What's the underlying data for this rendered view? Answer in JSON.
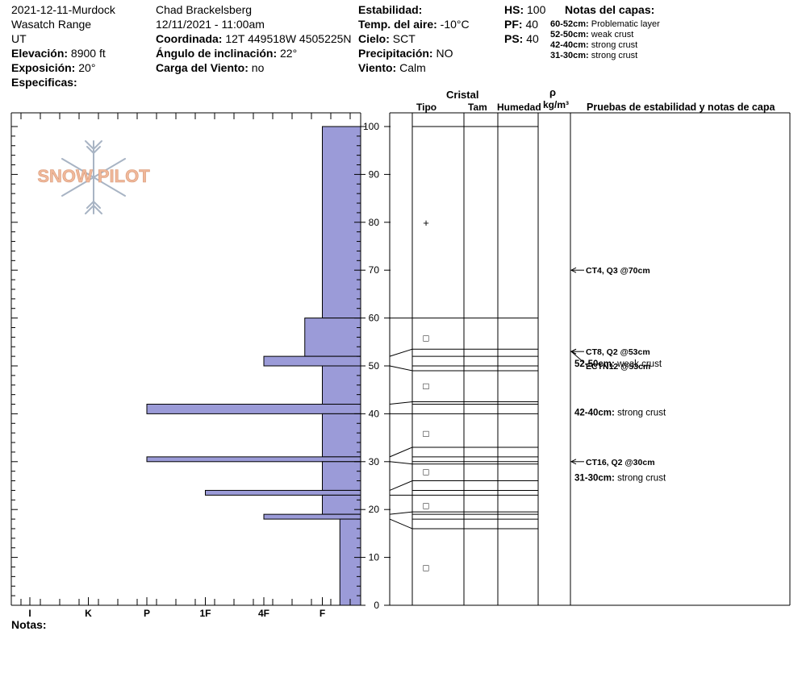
{
  "header": {
    "col1": {
      "title": "2021-12-11-Murdock",
      "range": "Wasatch Range",
      "state": "UT",
      "elevation_label": "Elevación:",
      "elevation": "8900 ft",
      "aspect_label": "Exposición:",
      "aspect": "20°",
      "specifics_label": "Especificas:"
    },
    "col2": {
      "observer": "Chad Brackelsberg",
      "datetime": "12/11/2021 - 11:00am",
      "coord_label": "Coordinada:",
      "coord": "12T 449518W 4505225N",
      "slope_label": "Ángulo de inclinación:",
      "slope": "22°",
      "wind_load_label": "Carga del Viento:",
      "wind_load": "no"
    },
    "col3": {
      "stability_label": "Estabilidad:",
      "air_temp_label": "Temp. del aire:",
      "air_temp": "-10°C",
      "sky_label": "Cielo:",
      "sky": "SCT",
      "precip_label": "Precipitación:",
      "precip": "NO",
      "wind_label": "Viento:",
      "wind": "Calm"
    },
    "col4": {
      "hs_label": "HS:",
      "hs": "100",
      "pf_label": "PF:",
      "pf": "40",
      "ps_label": "PS:",
      "ps": "40"
    },
    "layer_notes": {
      "title": "Notas del capas:",
      "items": [
        {
          "range": "60-52cm:",
          "note": "Problematic layer"
        },
        {
          "range": "52-50cm:",
          "note": "weak crust"
        },
        {
          "range": "42-40cm:",
          "note": "strong crust"
        },
        {
          "range": "31-30cm:",
          "note": "strong crust"
        }
      ]
    }
  },
  "logo_text": "SNOW PILOT",
  "notes_label": "Notas:",
  "table_headers": {
    "cristal": "Cristal",
    "tipo": "Tipo",
    "tam": "Tam",
    "humedad": "Humedad",
    "rho": "ρ",
    "density_unit": "kg/m³",
    "tests": "Pruebas de estabilidad y notas de capa"
  },
  "chart_data": {
    "type": "bar",
    "orientation": "horizontal",
    "xlabel": "",
    "ylabel": "",
    "y_unit": "cm",
    "ylim": [
      0,
      100
    ],
    "yticks": [
      0,
      10,
      20,
      30,
      40,
      50,
      60,
      70,
      80,
      90,
      100
    ],
    "hardness_ticks": [
      "I",
      "K",
      "P",
      "1F",
      "4F",
      "F"
    ],
    "hardness_scale_note": "hardness bars extend from the right edge (F) leftward to the hardness value",
    "layers": [
      {
        "top": 100,
        "bottom": 60,
        "hardness": "F"
      },
      {
        "top": 60,
        "bottom": 52,
        "hardness": "F-"
      },
      {
        "top": 52,
        "bottom": 50,
        "hardness": "4F"
      },
      {
        "top": 50,
        "bottom": 42,
        "hardness": "F"
      },
      {
        "top": 42,
        "bottom": 40,
        "hardness": "P"
      },
      {
        "top": 40,
        "bottom": 31,
        "hardness": "F"
      },
      {
        "top": 31,
        "bottom": 30,
        "hardness": "P"
      },
      {
        "top": 30,
        "bottom": 24,
        "hardness": "F"
      },
      {
        "top": 24,
        "bottom": 23,
        "hardness": "1F"
      },
      {
        "top": 23,
        "bottom": 19,
        "hardness": "F"
      },
      {
        "top": 19,
        "bottom": 18,
        "hardness": "4F"
      },
      {
        "top": 18,
        "bottom": 0,
        "hardness": "F+"
      }
    ],
    "hardness_index": {
      "I": 0,
      "K": 1,
      "P": 2,
      "1F": 3,
      "4F": 4,
      "F-": 4.7,
      "F": 5,
      "F+": 5.3
    },
    "layer_lines": [
      100,
      60,
      52,
      50,
      42,
      40,
      31,
      30,
      24,
      23,
      19,
      18
    ],
    "grain_markers": [
      {
        "depth": 80,
        "symbol": "+"
      },
      {
        "depth": 56,
        "symbol": "□"
      },
      {
        "depth": 46,
        "symbol": "□"
      },
      {
        "depth": 36,
        "symbol": "□"
      },
      {
        "depth": 28,
        "symbol": "□"
      },
      {
        "depth": 21,
        "symbol": "□"
      },
      {
        "depth": 8,
        "symbol": "□"
      }
    ],
    "stability_tests": [
      {
        "depth": 70,
        "text": "CT4, Q3 @70cm"
      },
      {
        "depth": 53,
        "text": "CT8, Q2 @53cm"
      },
      {
        "depth": 53,
        "text": "ECTN12 @53cm"
      },
      {
        "depth": 30,
        "text": "CT16, Q2 @30cm"
      }
    ],
    "layer_comments": [
      {
        "range": "52-50cm:",
        "note": "weak crust"
      },
      {
        "range": "42-40cm:",
        "note": "strong crust"
      },
      {
        "range": "31-30cm:",
        "note": "strong crust"
      }
    ]
  },
  "colors": {
    "bar_fill": "#9b9bd8",
    "bar_stroke": "#000000",
    "logo_orange": "#f0b89a",
    "logo_blue": "#a8b4c4"
  }
}
